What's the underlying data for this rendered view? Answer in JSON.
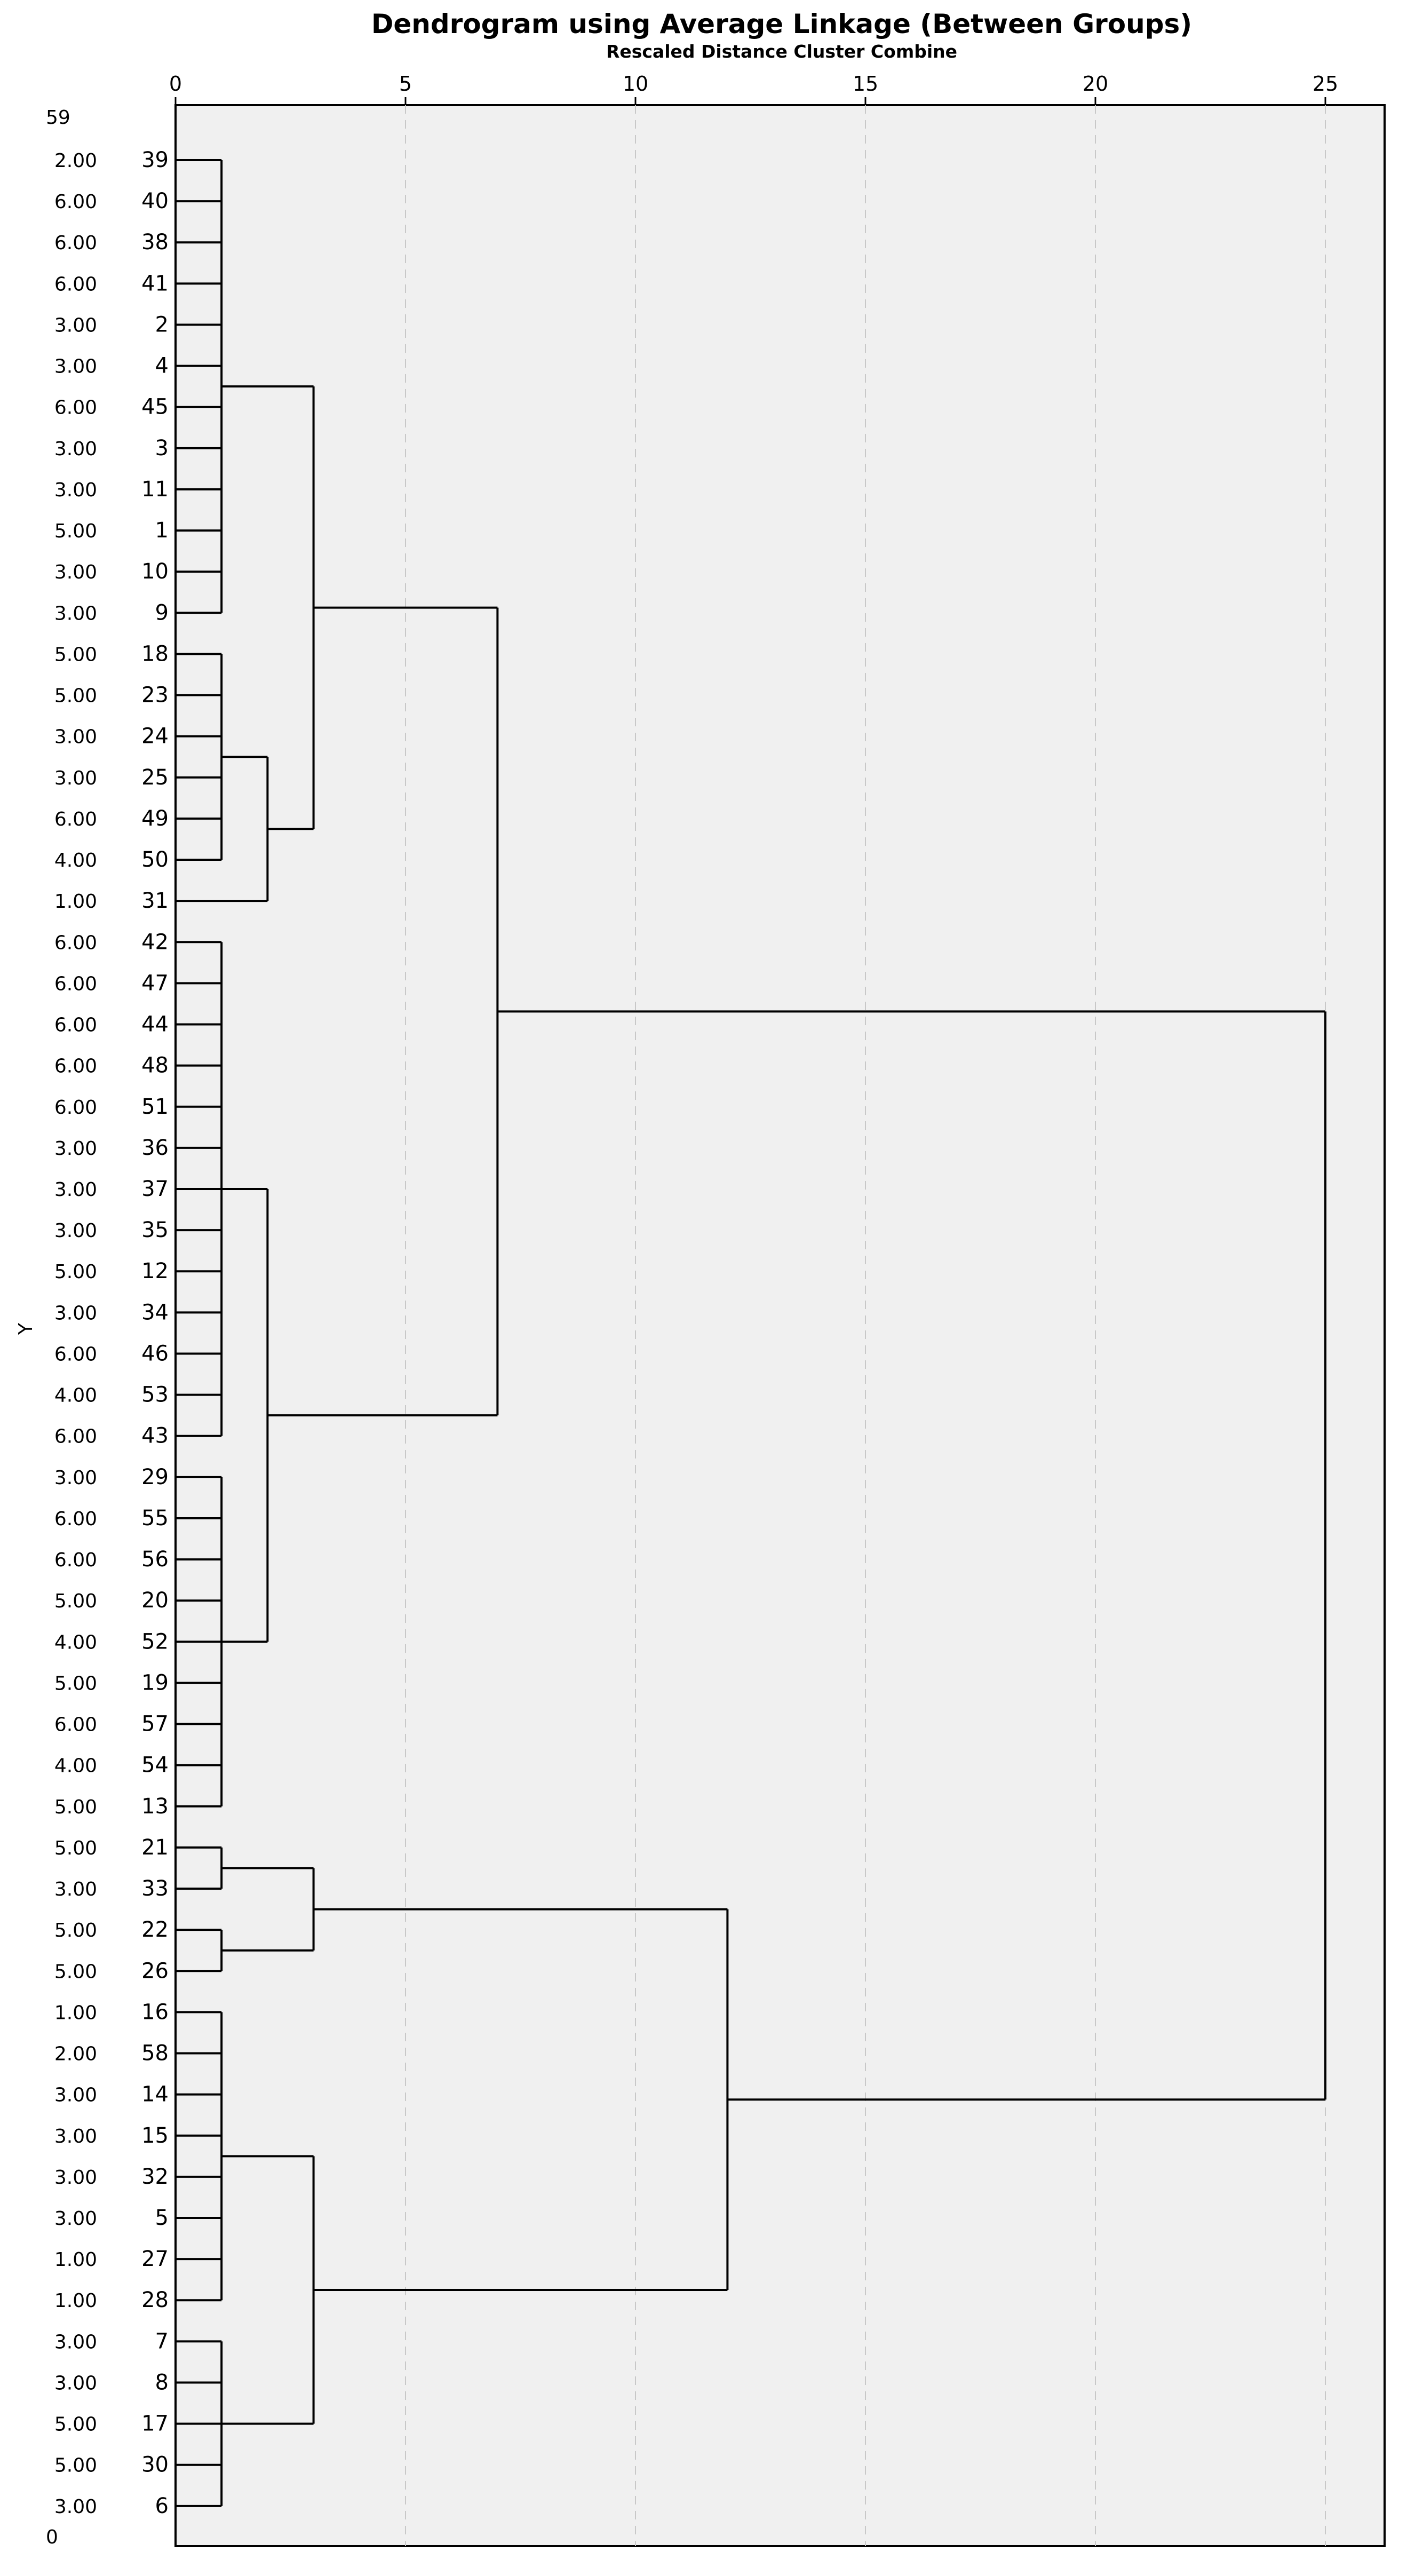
{
  "chart_data": {
    "type": "dendrogram",
    "title": "Dendrogram using Average Linkage (Between Groups)",
    "subtitle": "Rescaled Distance Cluster Combine",
    "ylabel": "Y",
    "xlim": [
      0,
      26.2
    ],
    "xticks": [
      0,
      5,
      10,
      15,
      20,
      25
    ],
    "grid": "vertical dashed",
    "header_left": "59",
    "footer_left": "0",
    "leaves": [
      {
        "y": "2.00",
        "id": "39"
      },
      {
        "y": "6.00",
        "id": "40"
      },
      {
        "y": "6.00",
        "id": "38"
      },
      {
        "y": "6.00",
        "id": "41"
      },
      {
        "y": "3.00",
        "id": "2"
      },
      {
        "y": "3.00",
        "id": "4"
      },
      {
        "y": "6.00",
        "id": "45"
      },
      {
        "y": "3.00",
        "id": "3"
      },
      {
        "y": "3.00",
        "id": "11"
      },
      {
        "y": "5.00",
        "id": "1"
      },
      {
        "y": "3.00",
        "id": "10"
      },
      {
        "y": "3.00",
        "id": "9"
      },
      {
        "y": "5.00",
        "id": "18"
      },
      {
        "y": "5.00",
        "id": "23"
      },
      {
        "y": "3.00",
        "id": "24"
      },
      {
        "y": "3.00",
        "id": "25"
      },
      {
        "y": "6.00",
        "id": "49"
      },
      {
        "y": "4.00",
        "id": "50"
      },
      {
        "y": "1.00",
        "id": "31"
      },
      {
        "y": "6.00",
        "id": "42"
      },
      {
        "y": "6.00",
        "id": "47"
      },
      {
        "y": "6.00",
        "id": "44"
      },
      {
        "y": "6.00",
        "id": "48"
      },
      {
        "y": "6.00",
        "id": "51"
      },
      {
        "y": "3.00",
        "id": "36"
      },
      {
        "y": "3.00",
        "id": "37"
      },
      {
        "y": "3.00",
        "id": "35"
      },
      {
        "y": "5.00",
        "id": "12"
      },
      {
        "y": "3.00",
        "id": "34"
      },
      {
        "y": "6.00",
        "id": "46"
      },
      {
        "y": "4.00",
        "id": "53"
      },
      {
        "y": "6.00",
        "id": "43"
      },
      {
        "y": "3.00",
        "id": "29"
      },
      {
        "y": "6.00",
        "id": "55"
      },
      {
        "y": "6.00",
        "id": "56"
      },
      {
        "y": "5.00",
        "id": "20"
      },
      {
        "y": "4.00",
        "id": "52"
      },
      {
        "y": "5.00",
        "id": "19"
      },
      {
        "y": "6.00",
        "id": "57"
      },
      {
        "y": "4.00",
        "id": "54"
      },
      {
        "y": "5.00",
        "id": "13"
      },
      {
        "y": "5.00",
        "id": "21"
      },
      {
        "y": "3.00",
        "id": "33"
      },
      {
        "y": "5.00",
        "id": "22"
      },
      {
        "y": "5.00",
        "id": "26"
      },
      {
        "y": "1.00",
        "id": "16"
      },
      {
        "y": "2.00",
        "id": "58"
      },
      {
        "y": "3.00",
        "id": "14"
      },
      {
        "y": "3.00",
        "id": "15"
      },
      {
        "y": "3.00",
        "id": "32"
      },
      {
        "y": "3.00",
        "id": "5"
      },
      {
        "y": "1.00",
        "id": "27"
      },
      {
        "y": "1.00",
        "id": "28"
      },
      {
        "y": "3.00",
        "id": "7"
      },
      {
        "y": "3.00",
        "id": "8"
      },
      {
        "y": "5.00",
        "id": "17"
      },
      {
        "y": "5.00",
        "id": "30"
      },
      {
        "y": "3.00",
        "id": "6"
      }
    ],
    "clusters": [
      {
        "name": "A1",
        "children": [
          0,
          1,
          2,
          3,
          4,
          5,
          6,
          7,
          8,
          9,
          10,
          11
        ],
        "distance": 1
      },
      {
        "name": "A2",
        "children": [
          12,
          13,
          14,
          15,
          16,
          17
        ],
        "distance": 1
      },
      {
        "name": "A2b",
        "children": [
          "A2",
          18
        ],
        "distance": 2
      },
      {
        "name": "A",
        "children": [
          "A1",
          "A2b"
        ],
        "distance": 3
      },
      {
        "name": "B1",
        "children": [
          19,
          20,
          21,
          22,
          23,
          24,
          25,
          26,
          27,
          28,
          29,
          30,
          31
        ],
        "distance": 1
      },
      {
        "name": "B2",
        "children": [
          32,
          33,
          34,
          35,
          36,
          37,
          38,
          39,
          40
        ],
        "distance": 1
      },
      {
        "name": "B",
        "children": [
          "B1",
          "B2"
        ],
        "distance": 2
      },
      {
        "name": "AB",
        "children": [
          "A",
          "B"
        ],
        "distance": 7
      },
      {
        "name": "C1",
        "children": [
          41,
          42
        ],
        "distance": 1
      },
      {
        "name": "C2",
        "children": [
          43,
          44
        ],
        "distance": 1
      },
      {
        "name": "C",
        "children": [
          "C1",
          "C2"
        ],
        "distance": 3
      },
      {
        "name": "D1",
        "children": [
          45,
          46,
          47,
          48,
          49,
          50,
          51,
          52
        ],
        "distance": 1
      },
      {
        "name": "D2",
        "children": [
          53,
          54,
          55,
          56,
          57
        ],
        "distance": 1
      },
      {
        "name": "D",
        "children": [
          "D1",
          "D2"
        ],
        "distance": 3
      },
      {
        "name": "CD",
        "children": [
          "C",
          "D"
        ],
        "distance": 12
      },
      {
        "name": "ROOT",
        "children": [
          "AB",
          "CD"
        ],
        "distance": 25
      }
    ]
  }
}
